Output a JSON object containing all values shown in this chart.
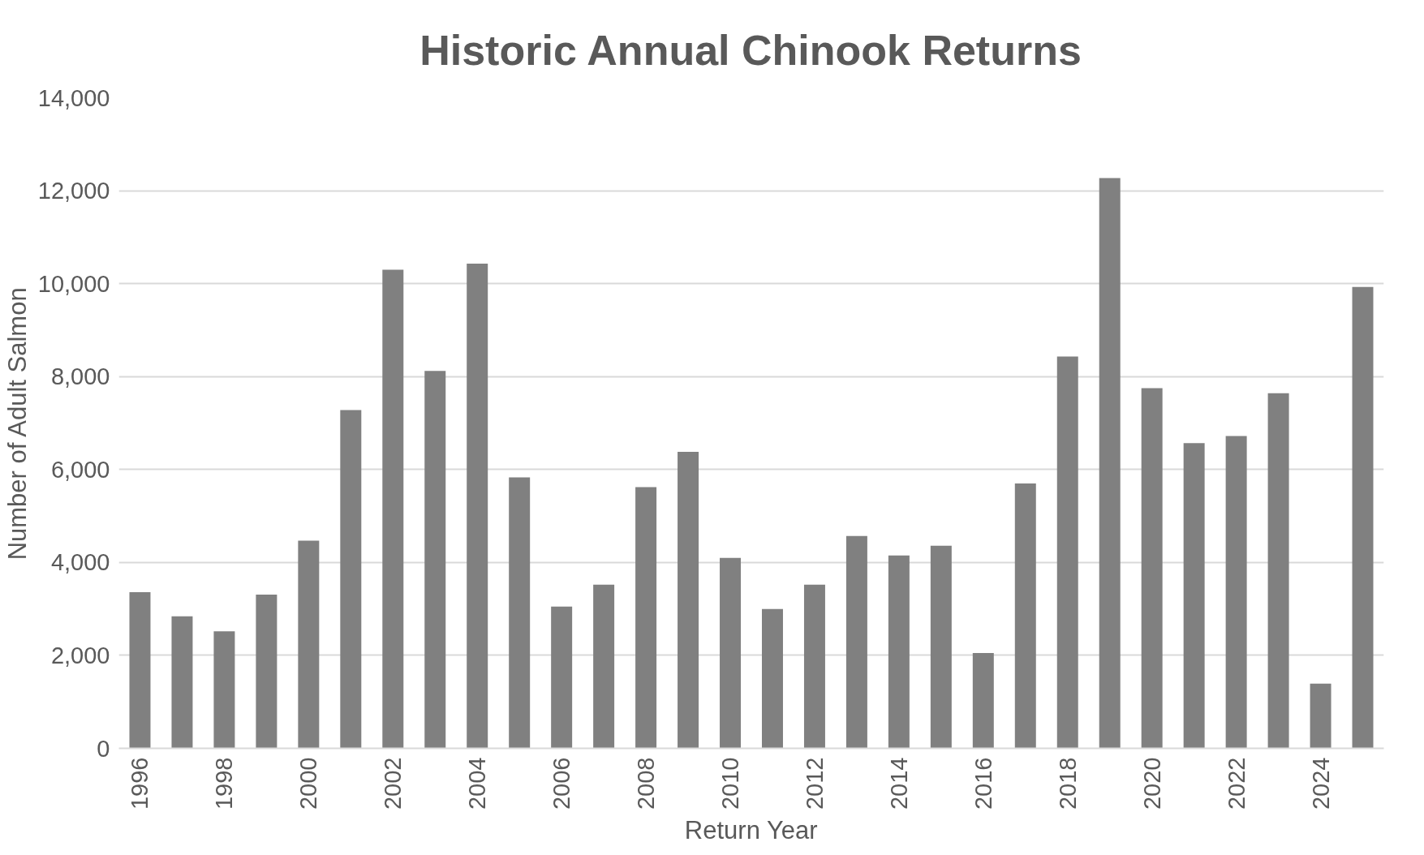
{
  "chart_data": {
    "type": "bar",
    "title": "Historic Annual Chinook Returns",
    "xlabel": "Return Year",
    "ylabel": "Number of Adult Salmon",
    "categories": [
      "1996",
      null,
      "1998",
      null,
      "2000",
      null,
      "2002",
      null,
      "2004",
      null,
      "2006",
      null,
      "2008",
      null,
      "2010",
      null,
      "2012",
      null,
      "2014",
      null,
      "2016",
      null,
      "2018",
      null,
      "2020",
      null,
      "2022",
      null,
      "2024",
      null
    ],
    "values": [
      3360,
      2840,
      2520,
      3310,
      4470,
      7280,
      10300,
      8120,
      10430,
      5830,
      3050,
      3520,
      5620,
      6380,
      4100,
      3000,
      3520,
      4570,
      4150,
      4360,
      2050,
      5700,
      8430,
      12270,
      7750,
      6570,
      6720,
      7640,
      1390,
      9930
    ],
    "color": "#808080",
    "ylim": [
      0,
      14000
    ],
    "yticks": [
      {
        "value": 0,
        "label": "0"
      },
      {
        "value": 2000,
        "label": "2,000"
      },
      {
        "value": 4000,
        "label": "4,000"
      },
      {
        "value": 6000,
        "label": "6,000"
      },
      {
        "value": 8000,
        "label": "8,000"
      },
      {
        "value": 10000,
        "label": "10,000"
      },
      {
        "value": 12000,
        "label": "12,000"
      },
      {
        "value": 14000,
        "label": "14,000"
      }
    ],
    "grid": "y"
  }
}
